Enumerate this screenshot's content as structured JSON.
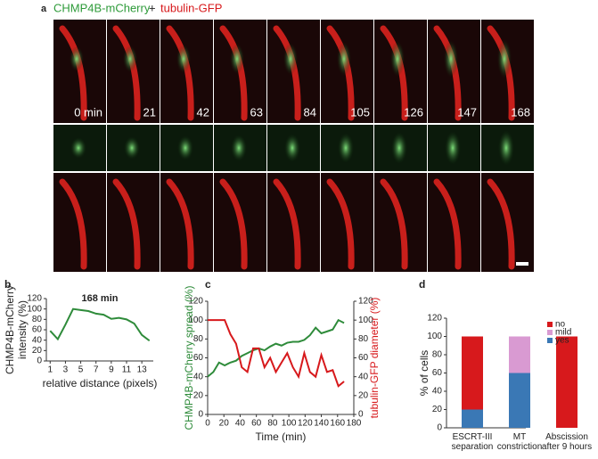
{
  "panel_a": {
    "label": "a",
    "title_green": "CHMP4B-mCherry",
    "plus": "+",
    "title_red": "tubulin-GFP",
    "times": [
      "0 min",
      "21",
      "42",
      "63",
      "84",
      "105",
      "126",
      "147",
      "168"
    ]
  },
  "chart_data": [
    {
      "type": "line",
      "label": "b",
      "title": "168 min",
      "y_label": [
        "CHMP4B-mCherry",
        "intensity (%)"
      ],
      "x_label": "relative distance (pixels)",
      "color": "#2e8b3a",
      "x": [
        1,
        2,
        3,
        4,
        5,
        6,
        7,
        8,
        9,
        10,
        11,
        12,
        13,
        14
      ],
      "values": [
        58,
        42,
        70,
        100,
        98,
        96,
        91,
        89,
        81,
        83,
        80,
        72,
        50,
        39
      ],
      "xlim": [
        0.5,
        14.5
      ],
      "xticks": [
        1,
        3,
        5,
        7,
        9,
        11,
        13
      ],
      "ylim": [
        0,
        120
      ],
      "yticks": [
        0,
        20,
        40,
        60,
        80,
        100,
        120
      ]
    },
    {
      "type": "line",
      "label": "c",
      "x_label": "Time (min)",
      "x": [
        0,
        7,
        14,
        21,
        28,
        35,
        42,
        49,
        56,
        63,
        70,
        77,
        84,
        91,
        98,
        105,
        112,
        119,
        126,
        133,
        140,
        147,
        154,
        161,
        168
      ],
      "series": [
        {
          "name": "CHMP4B-mCherry spread (%)",
          "color": "#2e8b3a",
          "values": [
            40,
            45,
            55,
            52,
            55,
            57,
            62,
            65,
            68,
            70,
            68,
            72,
            75,
            73,
            76,
            77,
            77,
            79,
            84,
            92,
            86,
            88,
            90,
            100,
            97
          ]
        },
        {
          "name": "tubulin-GFP diameter (%)",
          "color": "#d7191c",
          "axis": "y2",
          "values": [
            100,
            100,
            100,
            100,
            85,
            75,
            50,
            45,
            70,
            70,
            50,
            60,
            45,
            55,
            65,
            50,
            40,
            65,
            45,
            40,
            63,
            45,
            47,
            30,
            35
          ]
        }
      ],
      "xlim": [
        0,
        180
      ],
      "xticks": [
        0,
        20,
        40,
        60,
        80,
        100,
        120,
        140,
        160,
        180
      ],
      "ylim": [
        0,
        120
      ],
      "yticks": [
        0,
        20,
        40,
        60,
        80,
        100,
        120
      ],
      "y2lim": [
        0,
        120
      ],
      "y2ticks": [
        0,
        20,
        40,
        60,
        80,
        100,
        120
      ]
    },
    {
      "type": "stacked_bar",
      "label": "d",
      "y_label": "% of cells",
      "legend": "top-right",
      "categories": [
        "ESCRT-III\nseparation",
        "MT\nconstriction",
        "Abscission\nafter 9 hours"
      ],
      "series": [
        {
          "name": "yes",
          "color": "#3a78b5",
          "values": [
            20,
            60,
            0
          ]
        },
        {
          "name": "mild",
          "color": "#d99ad2",
          "values": [
            0,
            40,
            0
          ]
        },
        {
          "name": "no",
          "color": "#d7191c",
          "values": [
            80,
            0,
            100
          ]
        }
      ],
      "ylim": [
        0,
        120
      ],
      "yticks": [
        0,
        20,
        40,
        60,
        80,
        100,
        120
      ]
    }
  ]
}
